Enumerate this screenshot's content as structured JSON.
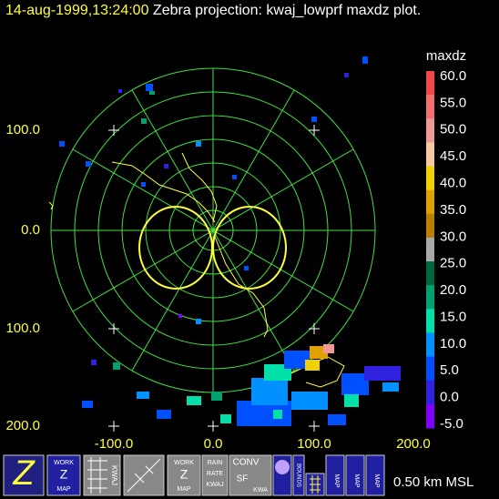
{
  "header": {
    "timestamp": "14-aug-1999,13:24:00",
    "title": "Zebra projection: kwaj_lowprf maxdz plot."
  },
  "axes": {
    "y_labels": [
      "100.0",
      "0.0",
      "100.0",
      "200.0"
    ],
    "x_labels": [
      "-100.0",
      "0.0",
      "100.0",
      "200.0"
    ]
  },
  "colorbar": {
    "title": "maxdz",
    "labels": [
      "60.0",
      "55.0",
      "50.0",
      "45.0",
      "40.0",
      "35.0",
      "30.0",
      "25.0",
      "20.0",
      "15.0",
      "10.0",
      "5.0",
      "0.0",
      "-5.0"
    ],
    "colors": [
      "#f04848",
      "#f07070",
      "#f09898",
      "#f8c8a0",
      "#f0d000",
      "#e0a000",
      "#b88000",
      "#a8a8a8",
      "#006840",
      "#00a070",
      "#00e0a8",
      "#0090ff",
      "#0050ff",
      "#3020e0",
      "#8000ff"
    ]
  },
  "toolbar": {
    "z": "Z",
    "work1": [
      "WORK",
      "Z",
      "MAP"
    ],
    "kwaj": "KWAJ",
    "work2": [
      "WORK",
      "Z",
      "MAP"
    ],
    "rain": [
      "RAIN",
      "RATE",
      "KWAJ"
    ],
    "conv": [
      "CONV",
      "SF",
      "KWA"
    ],
    "bounds": "BOUNDS",
    "maps": [
      "MAP",
      "MAP",
      "MAP"
    ]
  },
  "status": "0.50 km MSL"
}
